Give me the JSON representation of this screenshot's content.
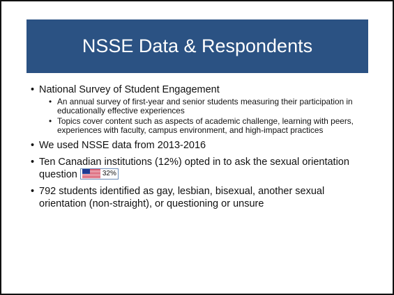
{
  "slide": {
    "title": "NSSE Data & Respondents",
    "bullets": [
      {
        "text": "National Survey of Student Engagement",
        "sub": [
          "An annual survey of first-year and senior students measuring their participation in educationally effective experiences",
          "Topics cover content such as aspects of academic challenge, learning with peers, experiences with faculty, campus environment, and high-impact practices"
        ]
      },
      {
        "text": "We used NSSE data from 2013-2016"
      },
      {
        "text": "Ten Canadian institutions (12%) opted in to ask the sexual orientation question",
        "badge": "32%"
      },
      {
        "text": "792 students identified as gay, lesbian, bisexual, another sexual orientation (non-straight), or questioning or unsure"
      }
    ]
  }
}
